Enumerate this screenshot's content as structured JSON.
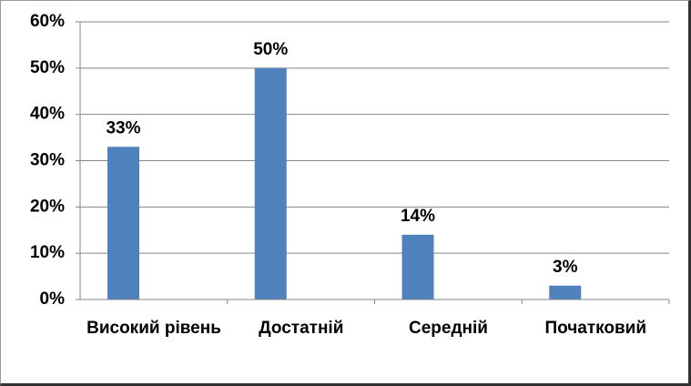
{
  "chart_data": {
    "type": "bar",
    "categories": [
      "Високий рівень",
      "Достатній",
      "Середній",
      "Початковий"
    ],
    "values": [
      33,
      50,
      14,
      3
    ],
    "value_labels": [
      "33%",
      "50%",
      "14%",
      "3%"
    ],
    "color": "#4f81bd",
    "ylim": [
      0,
      60
    ],
    "yticks": [
      {
        "value": 0,
        "label": "0%"
      },
      {
        "value": 10,
        "label": "10%"
      },
      {
        "value": 20,
        "label": "20%"
      },
      {
        "value": 30,
        "label": "30%"
      },
      {
        "value": 40,
        "label": "40%"
      },
      {
        "value": 50,
        "label": "50%"
      },
      {
        "value": 60,
        "label": "60%"
      }
    ],
    "grid": true
  }
}
